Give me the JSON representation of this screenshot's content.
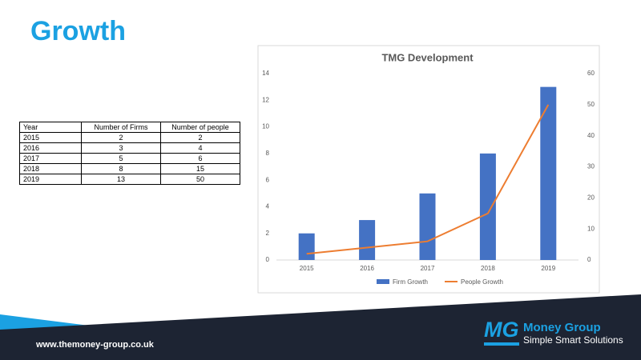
{
  "title": "Growth",
  "table": {
    "header": [
      "Year",
      "Number of Firms",
      "Number of people"
    ],
    "rows": [
      [
        2015,
        2,
        2
      ],
      [
        2016,
        3,
        4
      ],
      [
        2017,
        5,
        6
      ],
      [
        2018,
        8,
        15
      ],
      [
        2019,
        13,
        50
      ]
    ]
  },
  "chart_data": {
    "type": "bar",
    "title": "TMG Development",
    "categories": [
      "2015",
      "2016",
      "2017",
      "2018",
      "2019"
    ],
    "series": [
      {
        "name": "Firm Growth",
        "type": "bar",
        "color": "#4472c4",
        "values": [
          2,
          3,
          5,
          8,
          13
        ]
      },
      {
        "name": "People Growth",
        "type": "line",
        "axis": "y2",
        "color": "#ed7d31",
        "values": [
          2,
          4,
          6,
          15,
          50
        ]
      }
    ],
    "ylim": [
      0,
      14
    ],
    "yticks": [
      0,
      2,
      4,
      6,
      8,
      10,
      12,
      14
    ],
    "y2lim": [
      0,
      60
    ],
    "y2ticks": [
      0,
      10,
      20,
      30,
      40,
      50,
      60
    ],
    "grid": false,
    "legend": "bottom"
  },
  "footer": {
    "url": "www.themoney-group.co.uk",
    "logo_mark": "MG",
    "logo_name": "Money Group",
    "tagline": "Simple Smart Solutions"
  }
}
